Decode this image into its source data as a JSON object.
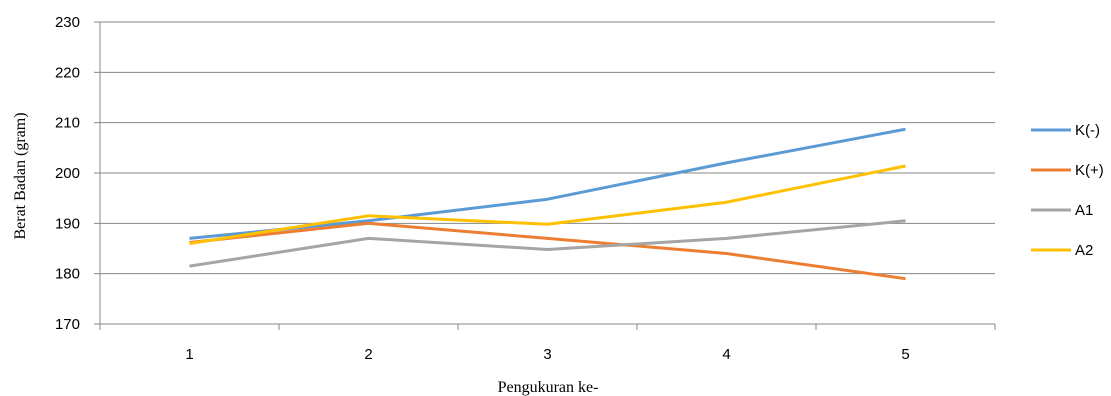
{
  "chart_data": {
    "type": "line",
    "title": "",
    "xlabel": "Pengukuran ke-",
    "ylabel": "Berat Badan (gram)",
    "categories": [
      "1",
      "2",
      "3",
      "4",
      "5"
    ],
    "ylim": [
      170,
      230
    ],
    "yticks": [
      170,
      180,
      190,
      200,
      210,
      220,
      230
    ],
    "grid": "horizontal",
    "legend_position": "right",
    "series": [
      {
        "name": "K(-)",
        "color": "#5b9bd5",
        "values": [
          187,
          190.5,
          194.8,
          202,
          208.7
        ]
      },
      {
        "name": "K(+)",
        "color": "#ed7d31",
        "values": [
          186.2,
          190,
          187,
          184,
          179
        ]
      },
      {
        "name": "A1",
        "color": "#a5a5a5",
        "values": [
          181.5,
          187,
          184.8,
          187,
          190.5
        ]
      },
      {
        "name": "A2",
        "color": "#ffc000",
        "values": [
          186,
          191.5,
          189.8,
          194.2,
          201.4
        ]
      }
    ]
  }
}
